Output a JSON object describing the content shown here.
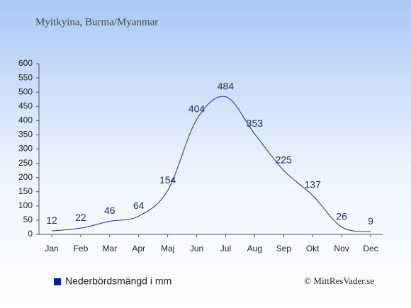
{
  "chart_data": {
    "type": "line",
    "title": "Myitkyina, Burma/Myanmar",
    "categories": [
      "Jan",
      "Feb",
      "Mar",
      "Apr",
      "Maj",
      "Jun",
      "Jul",
      "Aug",
      "Sep",
      "Okt",
      "Nov",
      "Dec"
    ],
    "series": [
      {
        "name": "Nederbördsmängd i mm",
        "color": "#1a2f8a",
        "values": [
          12,
          22,
          46,
          64,
          154,
          404,
          484,
          353,
          225,
          137,
          26,
          9
        ]
      }
    ],
    "ylim": [
      0,
      600
    ],
    "yticks": [
      0,
      50,
      100,
      150,
      200,
      250,
      300,
      350,
      400,
      450,
      500,
      550,
      600
    ],
    "legend_color": "#0a1aa8",
    "source": "© MittResVader.se"
  }
}
